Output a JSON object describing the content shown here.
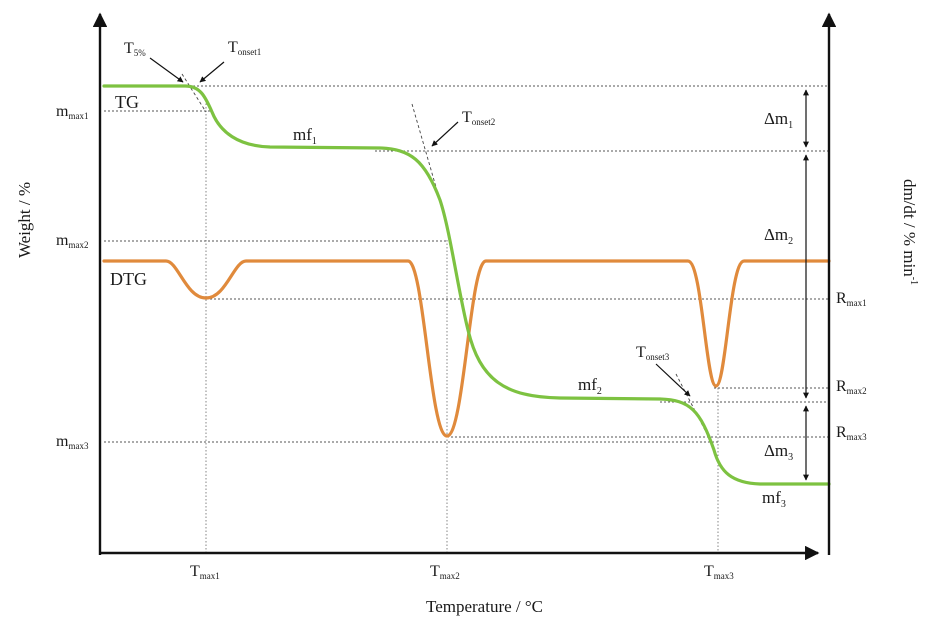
{
  "axes": {
    "x_label": "Temperature / °C",
    "y_left_label": "Weight  / %",
    "y_right_label": "dm/dt  / % min",
    "y_right_exp": "-1"
  },
  "curves": {
    "tg_label": "TG",
    "dtg_label": "DTG",
    "tg_color": "#7dc241",
    "dtg_color": "#e08a3c"
  },
  "left_labels": {
    "mmax1": {
      "base": "m",
      "sub": "max1"
    },
    "mmax2": {
      "base": "m",
      "sub": "max2"
    },
    "mmax3": {
      "base": "m",
      "sub": "max3"
    }
  },
  "x_ticks": {
    "t1": {
      "base": "T",
      "sub": "max1"
    },
    "t2": {
      "base": "T",
      "sub": "max2"
    },
    "t3": {
      "base": "T",
      "sub": "max3"
    }
  },
  "onsets": {
    "t5": {
      "base": "T",
      "sub": "5%"
    },
    "o1": {
      "base": "T",
      "sub": "onset1"
    },
    "o2": {
      "base": "T",
      "sub": "onset2"
    },
    "o3": {
      "base": "T",
      "sub": "onset3"
    }
  },
  "plateaus": {
    "mf1": {
      "base": "mf",
      "sub": "1"
    },
    "mf2": {
      "base": "mf",
      "sub": "2"
    },
    "mf3": {
      "base": "mf",
      "sub": "3"
    }
  },
  "right_dims": {
    "dm1": {
      "base": "Δm",
      "sub": "1"
    },
    "dm2": {
      "base": "Δm",
      "sub": "2"
    },
    "dm3": {
      "base": "Δm",
      "sub": "3"
    }
  },
  "right_rates": {
    "r1": {
      "base": "R",
      "sub": "max1"
    },
    "r2": {
      "base": "R",
      "sub": "max2"
    },
    "r3": {
      "base": "R",
      "sub": "max3"
    }
  }
}
